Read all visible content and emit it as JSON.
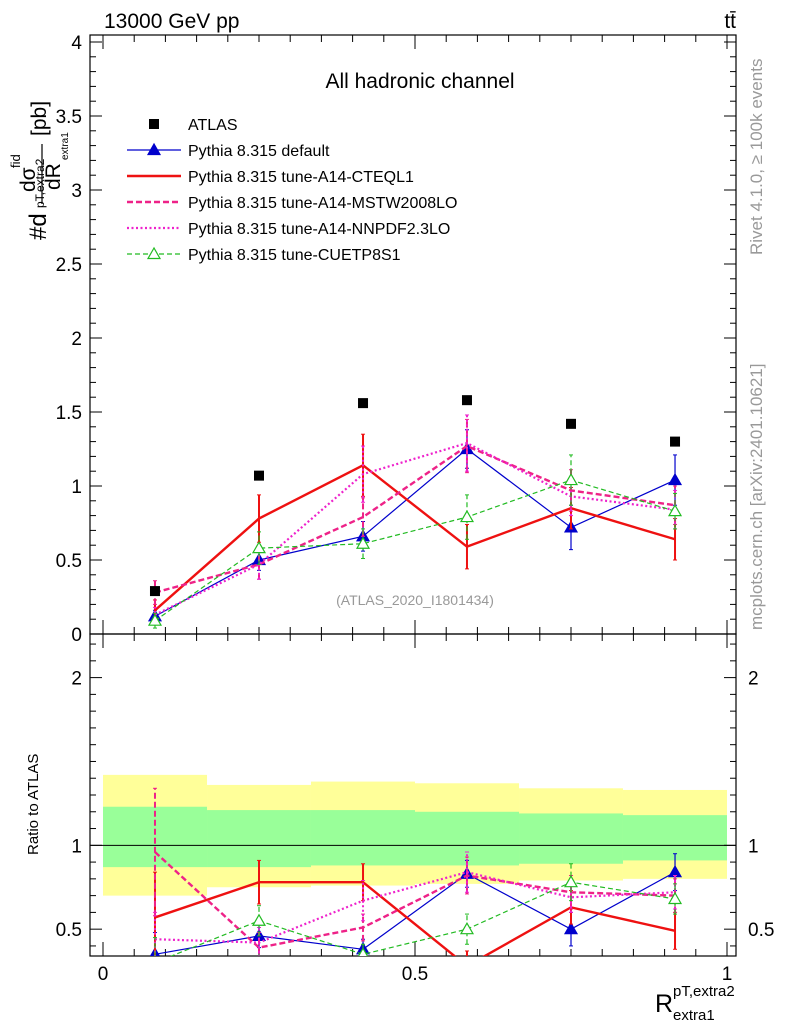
{
  "header": {
    "energy_label": "13000 GeV pp",
    "process_label": "tt̄",
    "side_rivet": "Rivet 4.1.0, ≥ 100k events",
    "side_source": "mcplots.cern.ch [arXiv:2401.10621]"
  },
  "colors": {
    "atlas": "#000000",
    "default": "#0000cc",
    "cteql1": "#ee1111",
    "mstw": "#ee2288",
    "nnpdf": "#ee22cc",
    "cuetp": "#22bb22",
    "band_inner": "#99ff99",
    "band_outer": "#ffff99"
  },
  "chart_data": [
    {
      "type": "line",
      "panel": "main",
      "title": "All hadronic channel",
      "watermark": "(ATLAS_2020_I1801434)",
      "ylabel": "#d dσ^fid / dR^pT,extra2_extra1 [pb]",
      "ylabel_parts": {
        "hash": "#d",
        "num": "dσ",
        "num_sup": "fid",
        "num_sub": "pT,extra2",
        "den": "dR",
        "den_sub": "extra1",
        "unit": "[pb]"
      },
      "xlim": [
        0,
        1
      ],
      "ylim": [
        0,
        4
      ],
      "y_tick_labels": [
        "0",
        "0.5",
        "1",
        "1.5",
        "2",
        "2.5",
        "3",
        "3.5",
        "4"
      ],
      "x": [
        0.0833,
        0.25,
        0.4167,
        0.5833,
        0.75,
        0.9167
      ],
      "series": [
        {
          "name": "ATLAS",
          "style": "data",
          "values": [
            0.29,
            1.07,
            1.56,
            1.58,
            1.42,
            1.3
          ]
        },
        {
          "name": "Pythia 8.315 default",
          "style": "default",
          "values": [
            0.12,
            0.5,
            0.66,
            1.25,
            0.72,
            1.04
          ],
          "errors": [
            0.04,
            0.07,
            0.1,
            0.13,
            0.15,
            0.17
          ]
        },
        {
          "name": "Pythia 8.315 tune-A14-CTEQL1",
          "style": "cteql1",
          "values": [
            0.16,
            0.78,
            1.14,
            0.59,
            0.85,
            0.64
          ],
          "errors": [
            0.07,
            0.16,
            0.21,
            0.15,
            0.14,
            0.14
          ]
        },
        {
          "name": "Pythia 8.315 tune-A14-MSTW2008LO",
          "style": "mstw",
          "values": [
            0.28,
            0.47,
            0.79,
            1.27,
            0.97,
            0.87
          ],
          "errors": [
            0.08,
            0.1,
            0.13,
            0.18,
            0.14,
            0.13
          ]
        },
        {
          "name": "Pythia 8.315 tune-A14-NNPDF2.3LO",
          "style": "nnpdf",
          "values": [
            0.13,
            0.47,
            1.08,
            1.29,
            0.93,
            0.84
          ],
          "errors": [
            0.05,
            0.1,
            0.19,
            0.19,
            0.13,
            0.13
          ]
        },
        {
          "name": "Pythia 8.315 tune-CUETP8S1",
          "style": "cuetp",
          "values": [
            0.09,
            0.58,
            0.61,
            0.79,
            1.04,
            0.83
          ],
          "errors": [
            0.05,
            0.11,
            0.1,
            0.15,
            0.17,
            0.12
          ]
        }
      ]
    },
    {
      "type": "line",
      "panel": "ratio",
      "ylabel": "Ratio to ATLAS",
      "xlabel": "R^pT,extra2_extra1",
      "xlabel_parts": {
        "base": "R",
        "sup": "pT,extra2",
        "sub": "extra1"
      },
      "xlim": [
        0,
        1
      ],
      "ylim": [
        0.34,
        2.26
      ],
      "x_tick_labels": [
        "0",
        "0.5",
        "1"
      ],
      "y_tick_labels": [
        "0.5",
        "1",
        "2"
      ],
      "x": [
        0.0833,
        0.25,
        0.4167,
        0.5833,
        0.75,
        0.9167
      ],
      "bin_edges": [
        0,
        0.1667,
        0.3333,
        0.5,
        0.6667,
        0.8333,
        1.0
      ],
      "band_inner": [
        [
          0.87,
          1.23
        ],
        [
          0.87,
          1.21
        ],
        [
          0.88,
          1.21
        ],
        [
          0.88,
          1.2
        ],
        [
          0.89,
          1.19
        ],
        [
          0.91,
          1.18
        ]
      ],
      "band_outer": [
        [
          0.7,
          1.42
        ],
        [
          0.75,
          1.36
        ],
        [
          0.76,
          1.38
        ],
        [
          0.77,
          1.37
        ],
        [
          0.79,
          1.34
        ],
        [
          0.8,
          1.33
        ]
      ],
      "series": [
        {
          "name": "Pythia 8.315 default",
          "style": "default",
          "values": [
            0.35,
            0.46,
            0.38,
            0.83,
            0.5,
            0.84
          ],
          "errors": [
            0.13,
            0.07,
            0.06,
            0.08,
            0.1,
            0.11
          ]
        },
        {
          "name": "Pythia 8.315 tune-A14-CTEQL1",
          "style": "cteql1",
          "values": [
            0.57,
            0.78,
            0.78,
            0.28,
            0.63,
            0.49
          ],
          "errors": [
            0.27,
            0.13,
            0.11,
            0.09,
            0.1,
            0.11
          ]
        },
        {
          "name": "Pythia 8.315 tune-A14-MSTW2008LO",
          "style": "mstw",
          "values": [
            0.96,
            0.39,
            0.51,
            0.82,
            0.72,
            0.7
          ],
          "errors": [
            0.38,
            0.09,
            0.08,
            0.11,
            0.1,
            0.1
          ]
        },
        {
          "name": "Pythia 8.315 tune-A14-NNPDF2.3LO",
          "style": "nnpdf",
          "values": [
            0.44,
            0.42,
            0.67,
            0.84,
            0.69,
            0.72
          ],
          "errors": [
            0.16,
            0.09,
            0.12,
            0.12,
            0.09,
            0.1
          ]
        },
        {
          "name": "Pythia 8.315 tune-CUETP8S1",
          "style": "cuetp",
          "values": [
            0.3,
            0.55,
            0.35,
            0.5,
            0.78,
            0.68
          ],
          "errors": [
            0.15,
            0.09,
            0.06,
            0.09,
            0.11,
            0.09
          ]
        }
      ]
    }
  ]
}
